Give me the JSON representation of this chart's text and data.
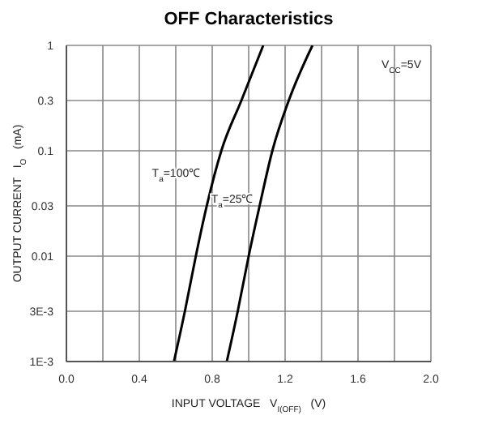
{
  "chart_data": {
    "type": "line",
    "title": "OFF Characteristics",
    "xlabel": "INPUT VOLTAGE   V$_{I(OFF)}$   (V)",
    "ylabel": "OUTPUT CURRENT   I$_{O}$   (mA)",
    "series": [
      {
        "color": "#000000",
        "x": [
          0.59,
          0.65,
          0.71,
          0.77,
          0.85,
          0.96,
          1.08
        ],
        "values": [
          0.001,
          0.003,
          0.01,
          0.03,
          0.1,
          0.3,
          1
        ]
      },
      {
        "color": "#000000",
        "x": [
          0.88,
          0.94,
          1.0,
          1.06,
          1.13,
          1.22,
          1.35
        ],
        "values": [
          0.001,
          0.003,
          0.01,
          0.03,
          0.1,
          0.3,
          1
        ]
      }
    ],
    "annotations": [
      {
        "text": "T$_{a}$=100℃",
        "x": 0.77,
        "y": 0.03
      },
      {
        "text": "T$_{a}$=25℃",
        "x": 1.06,
        "y": 0.03
      },
      "V$_{CC}$=5V"
    ],
    "log": "y",
    "xlim": [
      0,
      2
    ],
    "ylim": [
      0.001,
      1
    ],
    "xticks": [
      {
        "value": 0,
        "label": "0.0"
      },
      {
        "value": 0.2,
        "label": null
      },
      0.4,
      {
        "value": 0.6,
        "label": null
      },
      0.8,
      {
        "value": 1.0,
        "label": null
      },
      1.2,
      {
        "value": 1.4,
        "label": null
      },
      1.6,
      {
        "value": 1.8,
        "label": null
      },
      {
        "value": 2,
        "label": "2.0"
      }
    ],
    "yticks": [
      {
        "value": 0.001,
        "label": "1E-3"
      },
      {
        "value": 0.003,
        "label": "3E-3"
      },
      0.01,
      0.03,
      0.1,
      0.3,
      1
    ],
    "grid": true,
    "marker": "none",
    "line_style": "solid"
  }
}
